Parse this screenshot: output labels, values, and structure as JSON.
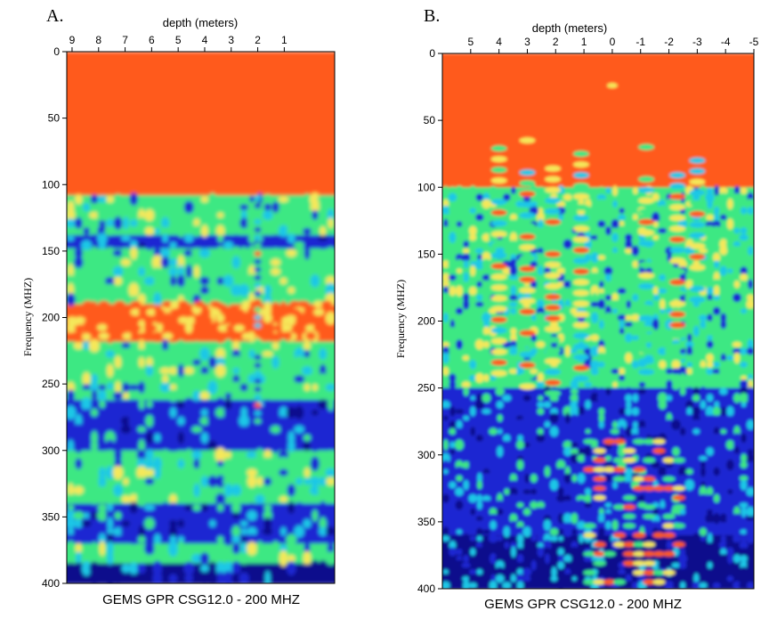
{
  "figure": {
    "panel_a_letter": "A.",
    "panel_b_letter": "B."
  },
  "palette": {
    "orange": "#ff5a1e",
    "yellow": "#f5e85a",
    "green": "#3ee883",
    "cyan": "#1ec8e6",
    "blue": "#1e28d2",
    "navy": "#0a0e8c"
  },
  "chart_data": [
    {
      "panel": "A.",
      "type": "heatmap",
      "title": "",
      "caption": "GEMS GPR CSG12.0 - 200 MHZ",
      "xlabel": "depth (meters)",
      "ylabel": "Frequency (MHZ)",
      "x_ticks": [
        9,
        8,
        7,
        6,
        5,
        4,
        3,
        2,
        1
      ],
      "xlim": [
        9.2,
        -0.9
      ],
      "y_ticks": [
        0,
        50,
        100,
        150,
        200,
        250,
        300,
        350,
        400
      ],
      "ylim": [
        0,
        400
      ],
      "y_inverted": true,
      "colormap": [
        "orange",
        "yellow",
        "green",
        "cyan",
        "blue",
        "navy"
      ],
      "bands": [
        {
          "from": 0,
          "to": 108,
          "level": "orange"
        },
        {
          "from": 108,
          "to": 138,
          "level": "green"
        },
        {
          "from": 138,
          "to": 148,
          "level": "blue"
        },
        {
          "from": 148,
          "to": 190,
          "level": "green"
        },
        {
          "from": 190,
          "to": 218,
          "level": "orange"
        },
        {
          "from": 218,
          "to": 262,
          "level": "green"
        },
        {
          "from": 262,
          "to": 300,
          "level": "blue"
        },
        {
          "from": 300,
          "to": 340,
          "level": "green"
        },
        {
          "from": 340,
          "to": 370,
          "level": "blue"
        },
        {
          "from": 370,
          "to": 385,
          "level": "green"
        },
        {
          "from": 385,
          "to": 400,
          "level": "navy"
        }
      ],
      "grid": false
    },
    {
      "panel": "B.",
      "type": "heatmap",
      "title": "",
      "caption": "GEMS GPR CSG12.0 - 200 MHZ",
      "xlabel": "depth (meters)",
      "ylabel": "Frequency (MHZ)",
      "x_ticks": [
        5,
        4,
        3,
        2,
        1,
        0,
        -1,
        -2,
        -3,
        -4,
        -5
      ],
      "xlim": [
        6.0,
        -5.0
      ],
      "y_ticks": [
        0,
        50,
        100,
        150,
        200,
        250,
        300,
        350,
        400
      ],
      "ylim": [
        0,
        400
      ],
      "y_inverted": true,
      "colormap": [
        "orange",
        "yellow",
        "green",
        "cyan",
        "blue",
        "navy"
      ],
      "bands": [
        {
          "from": 0,
          "to": 100,
          "level": "orange"
        },
        {
          "from": 100,
          "to": 150,
          "level": "green"
        },
        {
          "from": 150,
          "to": 250,
          "level": "green"
        },
        {
          "from": 250,
          "to": 300,
          "level": "blue"
        },
        {
          "from": 300,
          "to": 360,
          "level": "blue"
        },
        {
          "from": 360,
          "to": 400,
          "level": "navy"
        }
      ],
      "grid": false
    }
  ]
}
